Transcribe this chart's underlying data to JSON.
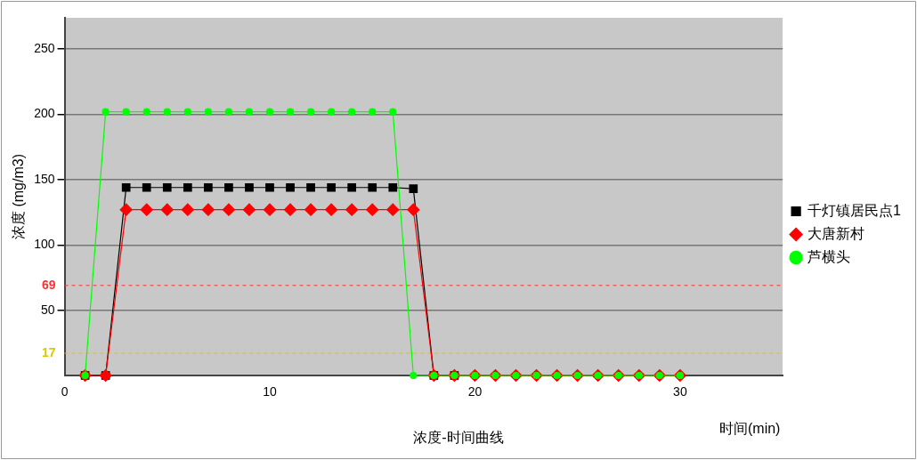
{
  "chart_data": {
    "type": "line",
    "title": "浓度-时间曲线",
    "xlabel": "时间(min)",
    "ylabel": "浓度 (mg/m3)",
    "x": [
      1,
      2,
      3,
      4,
      5,
      6,
      7,
      8,
      9,
      10,
      11,
      12,
      13,
      14,
      15,
      16,
      17,
      18,
      19,
      20,
      21,
      22,
      23,
      24,
      25,
      26,
      27,
      28,
      29,
      30
    ],
    "series": [
      {
        "name": "千灯镇居民点1",
        "color": "#000000",
        "marker": "square",
        "values": [
          0,
          0,
          144,
          144,
          144,
          144,
          144,
          144,
          144,
          144,
          144,
          144,
          144,
          144,
          144,
          144,
          143,
          0,
          0,
          null,
          null,
          null,
          null,
          null,
          null,
          null,
          null,
          null,
          null,
          null
        ]
      },
      {
        "name": "大唐新村",
        "color": "#ff0000",
        "marker": "diamond",
        "values": [
          0,
          0,
          127,
          127,
          127,
          127,
          127,
          127,
          127,
          127,
          127,
          127,
          127,
          127,
          127,
          127,
          127,
          0,
          0,
          0,
          0,
          0,
          0,
          0,
          0,
          0,
          0,
          0,
          0,
          0
        ]
      },
      {
        "name": "芦横头",
        "color": "#00ff00",
        "marker": "circle",
        "values": [
          0,
          202,
          202,
          202,
          202,
          202,
          202,
          202,
          202,
          202,
          202,
          202,
          202,
          202,
          202,
          202,
          0,
          0,
          0,
          0,
          0,
          0,
          0,
          0,
          0,
          0,
          0,
          0,
          0,
          0
        ]
      }
    ],
    "xlim": [
      0,
      35
    ],
    "xticks": [
      0,
      10,
      20,
      30
    ],
    "ylim": [
      0,
      274
    ],
    "yticks": [
      50,
      100,
      150,
      200,
      250
    ],
    "ref_lines": [
      {
        "axis": "y",
        "value": 69,
        "label": "69",
        "color": "#ff3333",
        "line_style": "dashed"
      },
      {
        "axis": "y",
        "value": 17,
        "label": "17",
        "color": "#d8c800",
        "line_style": "dashed"
      }
    ],
    "grid": "y",
    "legend": "right"
  }
}
